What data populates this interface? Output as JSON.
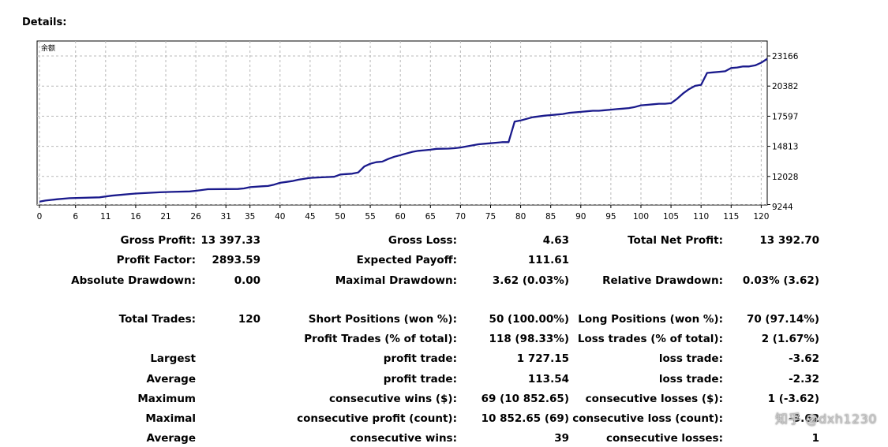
{
  "section_title": "Details:",
  "chart_data": {
    "type": "line",
    "series_label": "余额",
    "x_ticks": [
      0,
      6,
      11,
      16,
      21,
      26,
      31,
      35,
      40,
      45,
      50,
      55,
      60,
      65,
      70,
      75,
      80,
      85,
      90,
      95,
      100,
      105,
      110,
      115,
      120
    ],
    "y_ticks": [
      9244,
      12028,
      14813,
      17597,
      20382,
      23166
    ],
    "xlim": [
      0,
      121
    ],
    "ylim": [
      9244,
      23166
    ],
    "grid": true,
    "series": [
      {
        "color": "#1a1a8c",
        "x": [
          0,
          1,
          3,
          5,
          10,
          12,
          14,
          15,
          16,
          20,
          22,
          25,
          26,
          28,
          33,
          34,
          35,
          37,
          38,
          39,
          40,
          41,
          42,
          43,
          45,
          47,
          49,
          50,
          51,
          52,
          53,
          54,
          55,
          56,
          57,
          58,
          59,
          60,
          61,
          62,
          63,
          64,
          65,
          66,
          68,
          69,
          70,
          72,
          73,
          74,
          75,
          76,
          77,
          78,
          79,
          80,
          82,
          84,
          85,
          86,
          87,
          88,
          90,
          91,
          92,
          93,
          94,
          95,
          96,
          97,
          98,
          99,
          100,
          101,
          102,
          103,
          104,
          105,
          106,
          107,
          108,
          109,
          110,
          111,
          112,
          113,
          114,
          115,
          116,
          117,
          118,
          119,
          120,
          121
        ],
        "y": [
          9700,
          9800,
          9920,
          10020,
          10100,
          10250,
          10350,
          10400,
          10450,
          10560,
          10600,
          10640,
          10700,
          10850,
          10870,
          10920,
          11040,
          11120,
          11150,
          11270,
          11440,
          11520,
          11600,
          11720,
          11900,
          11950,
          12000,
          12200,
          12250,
          12280,
          12400,
          12950,
          13200,
          13350,
          13400,
          13650,
          13850,
          14000,
          14150,
          14300,
          14400,
          14450,
          14500,
          14580,
          14600,
          14640,
          14700,
          14900,
          15000,
          15050,
          15100,
          15150,
          15200,
          15200,
          17100,
          17200,
          17500,
          17650,
          17700,
          17750,
          17800,
          17900,
          18000,
          18050,
          18100,
          18100,
          18150,
          18200,
          18250,
          18300,
          18350,
          18450,
          18600,
          18650,
          18700,
          18750,
          18750,
          18800,
          19200,
          19700,
          20100,
          20400,
          20500,
          21600,
          21650,
          21700,
          21750,
          22050,
          22100,
          22200,
          22200,
          22300,
          22550,
          22900
        ]
      }
    ]
  },
  "stats": {
    "gross_profit_label": "Gross Profit:",
    "gross_profit": "13 397.33",
    "gross_loss_label": "Gross Loss:",
    "gross_loss": "4.63",
    "total_net_profit_label": "Total Net Profit:",
    "total_net_profit": "13 392.70",
    "profit_factor_label": "Profit Factor:",
    "profit_factor": "2893.59",
    "expected_payoff_label": "Expected Payoff:",
    "expected_payoff": "111.61",
    "absolute_drawdown_label": "Absolute Drawdown:",
    "absolute_drawdown": "0.00",
    "maximal_drawdown_label": "Maximal Drawdown:",
    "maximal_drawdown": "3.62 (0.03%)",
    "relative_drawdown_label": "Relative Drawdown:",
    "relative_drawdown": "0.03% (3.62)",
    "total_trades_label": "Total Trades:",
    "total_trades": "120",
    "short_positions_label": "Short Positions (won %):",
    "short_positions": "50 (100.00%)",
    "long_positions_label": "Long Positions (won %):",
    "long_positions": "70 (97.14%)",
    "profit_trades_label": "Profit Trades (% of total):",
    "profit_trades": "118 (98.33%)",
    "loss_trades_label": "Loss trades (% of total):",
    "loss_trades": "2 (1.67%)",
    "largest_label": "Largest",
    "largest_profit_label": "profit trade:",
    "largest_profit": "1 727.15",
    "largest_loss_label": "loss trade:",
    "largest_loss": "-3.62",
    "average_label": "Average",
    "average_profit_label": "profit trade:",
    "average_profit": "113.54",
    "average_loss_label": "loss trade:",
    "average_loss": "-2.32",
    "maximum_label": "Maximum",
    "max_consec_wins_label": "consecutive wins ($):",
    "max_consec_wins": "69 (10 852.65)",
    "max_consec_losses_label": "consecutive losses ($):",
    "max_consec_losses": "1 (-3.62)",
    "maximal_label": "Maximal",
    "maximal_consec_profit_label": "consecutive profit (count):",
    "maximal_consec_profit": "10 852.65 (69)",
    "maximal_consec_loss_label": "consecutive loss (count):",
    "maximal_consec_loss": "-3.62",
    "average2_label": "Average",
    "avg_consec_wins_label": "consecutive wins:",
    "avg_consec_wins": "39",
    "avg_consec_losses_label": "consecutive losses:",
    "avg_consec_losses": "1"
  },
  "watermark": "知乎 @dxh1230"
}
